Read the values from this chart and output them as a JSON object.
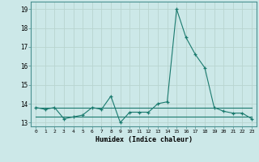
{
  "xlabel": "Humidex (Indice chaleur)",
  "line1_x": [
    0,
    1,
    2,
    3,
    4,
    5,
    6,
    7,
    8,
    9,
    10,
    11,
    12,
    13,
    14,
    15,
    16,
    17,
    18,
    19,
    20,
    21,
    22,
    23
  ],
  "line1_y": [
    13.8,
    13.7,
    13.8,
    13.2,
    13.3,
    13.4,
    13.8,
    13.7,
    14.4,
    13.0,
    13.55,
    13.55,
    13.55,
    14.0,
    14.1,
    19.0,
    17.5,
    16.6,
    15.9,
    13.8,
    13.6,
    13.5,
    13.5,
    13.2
  ],
  "line2_x": [
    0,
    1,
    2,
    3,
    4,
    5,
    6,
    7,
    8,
    9,
    10,
    11,
    12,
    13,
    14,
    15,
    16,
    17,
    18,
    19,
    20,
    21,
    22,
    23
  ],
  "line2_y": [
    13.8,
    13.8,
    13.8,
    13.8,
    13.8,
    13.8,
    13.8,
    13.8,
    13.8,
    13.8,
    13.8,
    13.8,
    13.8,
    13.8,
    13.8,
    13.8,
    13.8,
    13.8,
    13.8,
    13.8,
    13.8,
    13.8,
    13.8,
    13.8
  ],
  "line3_x": [
    0,
    23
  ],
  "line3_y": [
    13.3,
    13.3
  ],
  "line_color": "#1a7a6e",
  "bg_color": "#cce8e8",
  "grid_color": "#b8d4d0",
  "ylim": [
    12.8,
    19.4
  ],
  "xlim": [
    -0.5,
    23.5
  ],
  "yticks": [
    13,
    14,
    15,
    16,
    17,
    18,
    19
  ],
  "xticks": [
    0,
    1,
    2,
    3,
    4,
    5,
    6,
    7,
    8,
    9,
    10,
    11,
    12,
    13,
    14,
    15,
    16,
    17,
    18,
    19,
    20,
    21,
    22,
    23
  ]
}
